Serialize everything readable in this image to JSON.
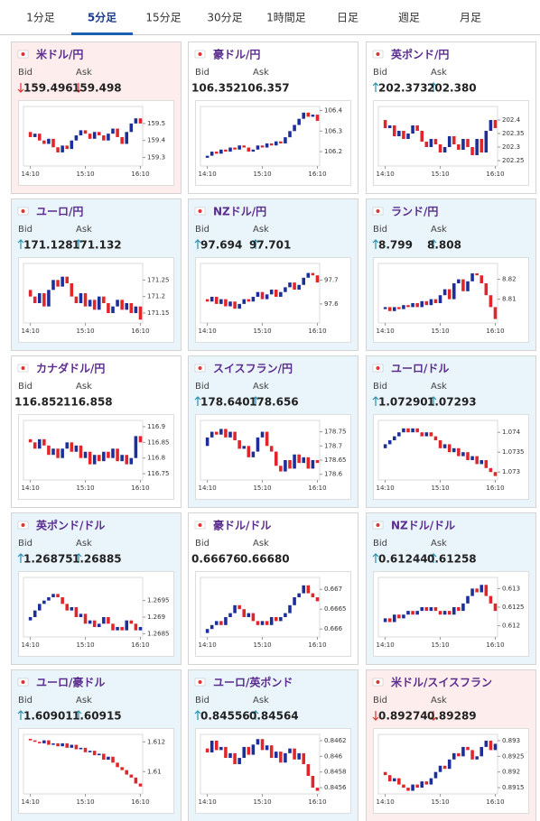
{
  "tabs": [
    "1分足",
    "5分足",
    "15分足",
    "30分足",
    "1時間足",
    "日足",
    "週足",
    "月足"
  ],
  "selected_tab": 1,
  "bid_label": "Bid",
  "ask_label": "Ask",
  "time_categories": [
    null,
    "14:10",
    null,
    null,
    null,
    null,
    null,
    null,
    null,
    null,
    null,
    null,
    null,
    "15:10",
    null,
    null,
    null,
    null,
    null,
    null,
    null,
    null,
    null,
    null,
    null,
    "16:10"
  ],
  "cards": [
    {
      "name": "米ドル/円",
      "background": "#fdeded",
      "bid": "159.496",
      "ask": "159.498",
      "trend": "down",
      "chart_data": {
        "type": "candlestick",
        "ylim": [
          159.25,
          159.6
        ],
        "yticks": [
          159.3,
          159.4,
          159.5
        ],
        "closes": [
          159.45,
          159.42,
          159.44,
          159.4,
          159.38,
          159.41,
          159.36,
          159.33,
          159.37,
          159.35,
          159.4,
          159.43,
          159.46,
          159.44,
          159.41,
          159.45,
          159.43,
          159.4,
          159.44,
          159.47,
          159.42,
          159.38,
          159.45,
          159.5,
          159.53,
          159.5
        ]
      }
    },
    {
      "name": "豪ドル/円",
      "background": "#ffffff",
      "bid": "106.352",
      "ask": "106.357",
      "trend": "none",
      "chart_data": {
        "type": "candlestick",
        "ylim": [
          106.13,
          106.42
        ],
        "yticks": [
          106.2,
          106.3,
          106.4
        ],
        "closes": [
          106.17,
          106.18,
          106.2,
          106.19,
          106.21,
          106.2,
          106.22,
          106.21,
          106.23,
          106.22,
          106.2,
          106.21,
          106.23,
          106.22,
          106.24,
          106.23,
          106.25,
          106.24,
          106.27,
          106.3,
          106.33,
          106.36,
          106.39,
          106.37,
          106.38,
          106.35
        ]
      }
    },
    {
      "name": "英ポンド/円",
      "background": "#ffffff",
      "bid": "202.373",
      "ask": "202.380",
      "trend": "up",
      "chart_data": {
        "type": "candlestick",
        "ylim": [
          202.23,
          202.45
        ],
        "yticks": [
          202.25,
          202.3,
          202.35,
          202.4
        ],
        "closes": [
          202.4,
          202.37,
          202.38,
          202.34,
          202.36,
          202.33,
          202.35,
          202.38,
          202.36,
          202.32,
          202.3,
          202.33,
          202.31,
          202.28,
          202.3,
          202.34,
          202.31,
          202.29,
          202.33,
          202.3,
          202.27,
          202.33,
          202.28,
          202.36,
          202.4,
          202.37
        ]
      }
    },
    {
      "name": "ユーロ/円",
      "background": "#e9f4fb",
      "bid": "171.128",
      "ask": "171.132",
      "trend": "up",
      "chart_data": {
        "type": "candlestick",
        "ylim": [
          171.12,
          171.3
        ],
        "yticks": [
          171.15,
          171.2,
          171.25
        ],
        "closes": [
          171.22,
          171.2,
          171.18,
          171.21,
          171.17,
          171.22,
          171.25,
          171.23,
          171.26,
          171.24,
          171.2,
          171.18,
          171.21,
          171.17,
          171.19,
          171.16,
          171.2,
          171.18,
          171.15,
          171.17,
          171.19,
          171.16,
          171.18,
          171.15,
          171.17,
          171.13
        ]
      }
    },
    {
      "name": "NZドル/円",
      "background": "#e9f4fb",
      "bid": "97.694",
      "ask": "97.701",
      "trend": "up",
      "chart_data": {
        "type": "candlestick",
        "ylim": [
          97.52,
          97.77
        ],
        "yticks": [
          97.6,
          97.7
        ],
        "closes": [
          97.62,
          97.61,
          97.63,
          97.6,
          97.62,
          97.59,
          97.61,
          97.58,
          97.6,
          97.62,
          97.61,
          97.63,
          97.65,
          97.62,
          97.64,
          97.66,
          97.63,
          97.65,
          97.67,
          97.69,
          97.66,
          97.68,
          97.71,
          97.73,
          97.72,
          97.69
        ]
      }
    },
    {
      "name": "ランド/円",
      "background": "#e9f4fb",
      "bid": "8.799",
      "ask": "8.808",
      "trend": "up",
      "chart_data": {
        "type": "candlestick",
        "ylim": [
          8.798,
          8.828
        ],
        "yticks": [
          8.81,
          8.82
        ],
        "closes": [
          8.805,
          8.806,
          8.804,
          8.806,
          8.805,
          8.807,
          8.806,
          8.808,
          8.806,
          8.809,
          8.807,
          8.81,
          8.808,
          8.812,
          8.815,
          8.81,
          8.818,
          8.82,
          8.814,
          8.819,
          8.823,
          8.822,
          8.818,
          8.812,
          8.806,
          8.8
        ]
      }
    },
    {
      "name": "カナダドル/円",
      "background": "#ffffff",
      "bid": "116.852",
      "ask": "116.858",
      "trend": "none",
      "chart_data": {
        "type": "candlestick",
        "ylim": [
          116.73,
          116.92
        ],
        "yticks": [
          116.75,
          116.8,
          116.85,
          116.9
        ],
        "closes": [
          116.86,
          116.85,
          116.83,
          116.86,
          116.84,
          116.81,
          116.83,
          116.8,
          116.83,
          116.85,
          116.82,
          116.84,
          116.8,
          116.82,
          116.78,
          116.81,
          116.79,
          116.82,
          116.8,
          116.83,
          116.79,
          116.81,
          116.78,
          116.8,
          116.87,
          116.85
        ]
      }
    },
    {
      "name": "スイスフラン/円",
      "background": "#e9f4fb",
      "bid": "178.640",
      "ask": "178.656",
      "trend": "up",
      "chart_data": {
        "type": "candlestick",
        "ylim": [
          178.58,
          178.79
        ],
        "yticks": [
          178.6,
          178.65,
          178.7,
          178.75
        ],
        "closes": [
          178.7,
          178.73,
          178.75,
          178.74,
          178.76,
          178.73,
          178.75,
          178.72,
          178.69,
          178.7,
          178.66,
          178.68,
          178.73,
          178.75,
          178.7,
          178.68,
          178.63,
          178.61,
          178.65,
          178.62,
          178.67,
          178.64,
          178.66,
          178.62,
          178.65,
          178.64
        ]
      }
    },
    {
      "name": "ユーロ/ドル",
      "background": "#e9f4fb",
      "bid": "1.07290",
      "ask": "1.07293",
      "trend": "up",
      "chart_data": {
        "type": "candlestick",
        "ylim": [
          1.0728,
          1.0743
        ],
        "yticks": [
          1.073,
          1.0735,
          1.074
        ],
        "closes": [
          1.0736,
          1.0737,
          1.0738,
          1.0739,
          1.074,
          1.0741,
          1.074,
          1.0741,
          1.074,
          1.0739,
          1.074,
          1.0739,
          1.0738,
          1.0736,
          1.0737,
          1.0735,
          1.0736,
          1.0734,
          1.0735,
          1.0733,
          1.0734,
          1.0732,
          1.0733,
          1.0731,
          1.073,
          1.0729
        ]
      }
    },
    {
      "name": "英ポンド/ドル",
      "background": "#e9f4fb",
      "bid": "1.26875",
      "ask": "1.26885",
      "trend": "up",
      "chart_data": {
        "type": "candlestick",
        "ylim": [
          1.2684,
          1.2702
        ],
        "yticks": [
          1.2685,
          1.269,
          1.2695
        ],
        "closes": [
          1.2689,
          1.269,
          1.2692,
          1.2694,
          1.2695,
          1.2696,
          1.2697,
          1.2696,
          1.2694,
          1.2692,
          1.2693,
          1.269,
          1.2691,
          1.2688,
          1.2689,
          1.2687,
          1.2688,
          1.269,
          1.2688,
          1.2686,
          1.2687,
          1.2686,
          1.2689,
          1.2688,
          1.2686,
          1.2687
        ]
      }
    },
    {
      "name": "豪ドル/ドル",
      "background": "#ffffff",
      "bid": "0.66676",
      "ask": "0.66680",
      "trend": "none",
      "chart_data": {
        "type": "candlestick",
        "ylim": [
          0.6658,
          0.6673
        ],
        "yticks": [
          0.666,
          0.6665,
          0.667
        ],
        "closes": [
          0.6659,
          0.666,
          0.6661,
          0.6662,
          0.6661,
          0.6663,
          0.6664,
          0.6666,
          0.6665,
          0.6663,
          0.6664,
          0.6662,
          0.6661,
          0.6662,
          0.6661,
          0.6663,
          0.6662,
          0.6663,
          0.6664,
          0.6666,
          0.6668,
          0.6669,
          0.6671,
          0.6669,
          0.6668,
          0.6667
        ]
      }
    },
    {
      "name": "NZドル/ドル",
      "background": "#e9f4fb",
      "bid": "0.61244",
      "ask": "0.61258",
      "trend": "up",
      "chart_data": {
        "type": "candlestick",
        "ylim": [
          0.6117,
          0.6133
        ],
        "yticks": [
          0.612,
          0.6125,
          0.613
        ],
        "closes": [
          0.6121,
          0.6122,
          0.6121,
          0.6123,
          0.6122,
          0.6123,
          0.6124,
          0.6123,
          0.6124,
          0.6125,
          0.6124,
          0.6125,
          0.6124,
          0.6123,
          0.6124,
          0.6123,
          0.6125,
          0.6124,
          0.6126,
          0.6128,
          0.613,
          0.6129,
          0.6131,
          0.6128,
          0.6126,
          0.6124
        ]
      }
    },
    {
      "name": "ユーロ/豪ドル",
      "background": "#e9f4fb",
      "bid": "1.60901",
      "ask": "1.60915",
      "trend": "up",
      "chart_data": {
        "type": "candlestick",
        "ylim": [
          1.6085,
          1.6125
        ],
        "yticks": [
          1.61,
          1.612
        ],
        "closes": [
          1.6122,
          1.6121,
          1.612,
          1.6119,
          1.6121,
          1.6118,
          1.6119,
          1.6117,
          1.6119,
          1.6116,
          1.6118,
          1.6115,
          1.6116,
          1.6113,
          1.6114,
          1.6111,
          1.6112,
          1.6108,
          1.611,
          1.6106,
          1.6103,
          1.6101,
          1.6098,
          1.6096,
          1.6092,
          1.609
        ]
      }
    },
    {
      "name": "ユーロ/英ポンド",
      "background": "#e9f4fb",
      "bid": "0.84556",
      "ask": "0.84564",
      "trend": "up",
      "chart_data": {
        "type": "candlestick",
        "ylim": [
          0.84552,
          0.84628
        ],
        "yticks": [
          0.8456,
          0.8458,
          0.846,
          0.8462
        ],
        "closes": [
          0.8461,
          0.84605,
          0.8462,
          0.84608,
          0.84612,
          0.84598,
          0.84604,
          0.8459,
          0.84598,
          0.84612,
          0.84602,
          0.84615,
          0.84622,
          0.84608,
          0.84614,
          0.84598,
          0.84606,
          0.84592,
          0.84604,
          0.8461,
          0.84596,
          0.84604,
          0.8459,
          0.84575,
          0.8456,
          0.84556
        ]
      }
    },
    {
      "name": "米ドル/スイスフラン",
      "background": "#fdeded",
      "bid": "0.89274",
      "ask": "0.89289",
      "trend": "down",
      "chart_data": {
        "type": "candlestick",
        "ylim": [
          0.8913,
          0.8932
        ],
        "yticks": [
          0.8915,
          0.892,
          0.8925,
          0.893
        ],
        "closes": [
          0.892,
          0.8919,
          0.8917,
          0.8918,
          0.8916,
          0.8915,
          0.8914,
          0.8916,
          0.8915,
          0.8917,
          0.8916,
          0.8918,
          0.892,
          0.8922,
          0.8921,
          0.8924,
          0.8926,
          0.8925,
          0.8928,
          0.8927,
          0.8924,
          0.8925,
          0.8928,
          0.893,
          0.8927,
          0.8929
        ]
      }
    }
  ]
}
